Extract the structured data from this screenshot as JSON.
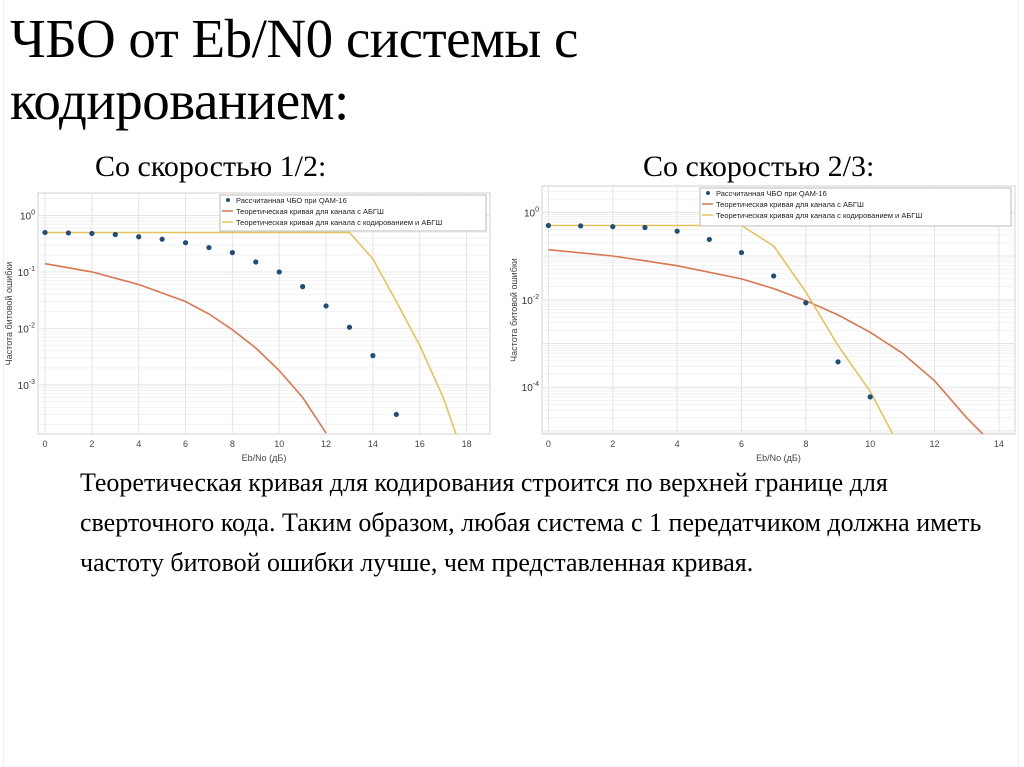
{
  "slide": {
    "title_line1": "ЧБО от Eb/N0 системы с",
    "title_line2": "кодированием:",
    "subtitle_left": "Со скоростью 1/2:",
    "subtitle_right": "Со скоростью 2/3:",
    "body_text": "Теоретическая кривая для кодирования строится по верхней границе для сверточного кода. Таким образом, любая система с 1 передатчиком должна иметь частоту битовой ошибки лучше, чем представленная кривая."
  },
  "colors": {
    "dots": "#1f4e79",
    "awgn_curve": "#d9774f",
    "coded_curve": "#e6c25a"
  },
  "chart_data": [
    {
      "type": "line",
      "title": "Со скоростью 1/2",
      "xlabel": "Eb/No (дБ)",
      "ylabel": "Частота битовой ошибки",
      "yscale": "log",
      "xlim": [
        -0.3,
        19
      ],
      "ylim": [
        0.000135,
        2.5
      ],
      "xticks": [
        0,
        2,
        4,
        6,
        8,
        10,
        12,
        14,
        16,
        18
      ],
      "yticks": [
        "10^0",
        "10^-1",
        "10^-2",
        "10^-3"
      ],
      "grid": true,
      "legend_position": "top-right",
      "series": [
        {
          "name": "Рассчитанная ЧБО при QAM-16",
          "style": "markers",
          "x": [
            0,
            1,
            2,
            3,
            4,
            5,
            6,
            7,
            8,
            9,
            10,
            11,
            12,
            13,
            14,
            15
          ],
          "y": [
            0.5,
            0.49,
            0.48,
            0.46,
            0.42,
            0.38,
            0.33,
            0.27,
            0.22,
            0.15,
            0.1,
            0.055,
            0.025,
            0.0105,
            0.0033,
            0.0003
          ]
        },
        {
          "name": "Теоретическая кривая для канала с АБГШ",
          "style": "line",
          "x": [
            0,
            2,
            4,
            6,
            7,
            8,
            9,
            10,
            11,
            12
          ],
          "y": [
            0.14,
            0.1,
            0.06,
            0.03,
            0.018,
            0.0095,
            0.0045,
            0.0018,
            0.0006,
            0.00014
          ]
        },
        {
          "name": "Теоретическая кривая для канала с кодированием и АБГШ",
          "style": "line",
          "x": [
            0,
            13,
            14,
            15,
            16,
            17,
            17.55
          ],
          "y": [
            0.5,
            0.5,
            0.17,
            0.03,
            0.005,
            0.0006,
            0.000135
          ]
        }
      ]
    },
    {
      "type": "line",
      "title": "Со скоростью 2/3",
      "xlabel": "Eb/No (дБ)",
      "ylabel": "Частота битовой ошибки",
      "yscale": "log",
      "xlim": [
        -0.2,
        14.5
      ],
      "ylim": [
        8.5e-06,
        4
      ],
      "xticks": [
        0,
        2,
        4,
        6,
        8,
        10,
        12,
        14
      ],
      "yticks": [
        "10^0",
        "10^-2",
        "10^-4"
      ],
      "grid": true,
      "legend_position": "top-right",
      "series": [
        {
          "name": "Рассчитанная ЧБО при QAM-16",
          "style": "markers",
          "x": [
            0,
            1,
            2,
            3,
            4,
            5,
            6,
            7,
            8,
            9,
            10
          ],
          "y": [
            0.5,
            0.49,
            0.47,
            0.45,
            0.37,
            0.24,
            0.12,
            0.035,
            0.0085,
            0.00038,
            6e-05
          ]
        },
        {
          "name": "Теоретическая кривая для канала с АБГШ",
          "style": "line",
          "x": [
            0,
            2,
            4,
            6,
            7,
            8,
            9,
            10,
            11,
            12,
            13,
            13.5
          ],
          "y": [
            0.14,
            0.1,
            0.06,
            0.03,
            0.018,
            0.0095,
            0.0045,
            0.0018,
            0.0006,
            0.00014,
            2e-05,
            8.5e-06
          ]
        },
        {
          "name": "Теоретическая кривая для канала с кодированием и АБГШ",
          "style": "line",
          "x": [
            0,
            6,
            7,
            8,
            9,
            10,
            10.7
          ],
          "y": [
            0.5,
            0.5,
            0.17,
            0.015,
            0.0009,
            8e-05,
            8.5e-06
          ]
        }
      ]
    }
  ]
}
